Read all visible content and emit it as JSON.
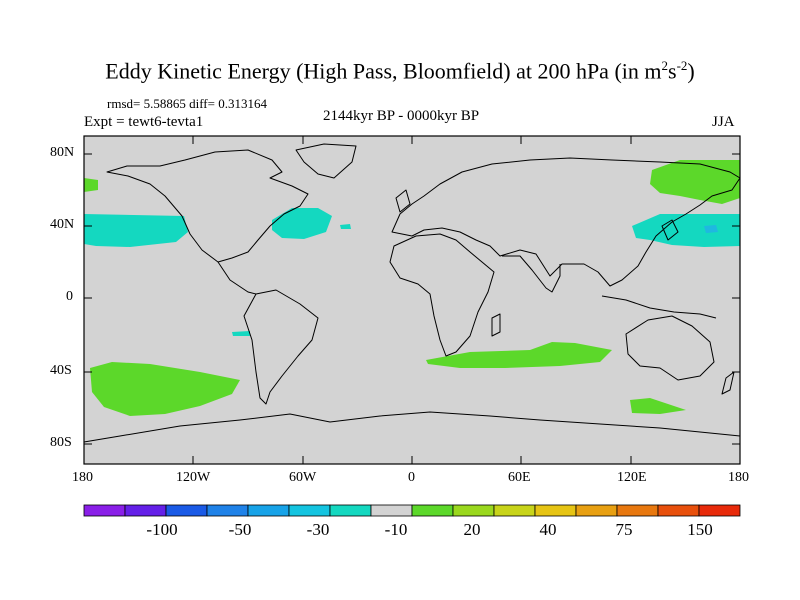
{
  "title": {
    "main": "Eddy Kinetic Energy (High Pass, Bloomfield) at 200 hPa (in m",
    "sup1": "2",
    "mid": "s",
    "sup2": "-2",
    "end": ")"
  },
  "stats": "rmsd= 5.58865 diff= 0.313164",
  "expt": "Expt = tewt6-tevta1",
  "period": "2144kyr BP - 0000kyr BP",
  "season": "JJA",
  "lat_ticks": [
    "80N",
    "40N",
    "0",
    "40S",
    "80S"
  ],
  "lon_ticks": [
    "180",
    "120W",
    "60W",
    "0",
    "60E",
    "120E",
    "180"
  ],
  "colorbar": {
    "colors": [
      "#8a1fe8",
      "#6420e8",
      "#1a5ae6",
      "#1f82e8",
      "#17a3e8",
      "#14c4e0",
      "#14d8c0",
      "#d3d3d3",
      "#5cd82a",
      "#9ad81e",
      "#c8d41a",
      "#e6c414",
      "#e8a012",
      "#e8780f",
      "#e8500c",
      "#e82a0a"
    ],
    "labels": [
      "-100",
      "-50",
      "-30",
      "-10",
      "20",
      "40",
      "75",
      "150"
    ]
  },
  "colors": {
    "land_bg": "#d3d3d3",
    "positive": "#5cd82a",
    "negative": "#14d8c0"
  }
}
